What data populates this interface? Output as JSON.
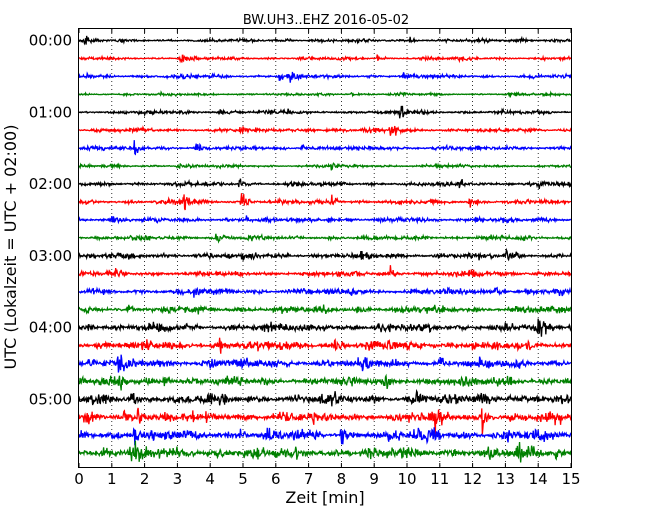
{
  "chart_data": {
    "type": "line",
    "title": "BW.UH3..EHZ 2016-05-02",
    "xlabel": "Zeit  [min]",
    "ylabel": "UTC (Lokalzeit = UTC + 02:00)",
    "xlim": [
      0,
      15
    ],
    "x_ticks": [
      "0",
      "1",
      "2",
      "3",
      "4",
      "5",
      "6",
      "7",
      "8",
      "9",
      "10",
      "11",
      "12",
      "13",
      "14",
      "15"
    ],
    "y_ticks": [
      "00:00",
      "01:00",
      "02:00",
      "03:00",
      "04:00",
      "05:00"
    ],
    "grid": "vertical dotted at each minute",
    "legend": "none",
    "trace_interval_minutes": 15,
    "trace_colors": [
      "#000000",
      "#ff0000",
      "#0000ff",
      "#008000"
    ],
    "traces": [
      {
        "start": "00:00",
        "noise": 0.15,
        "events": [
          [
            0.2,
            0.45
          ],
          [
            6.3,
            0.3
          ],
          [
            10.1,
            0.35
          ],
          [
            13.5,
            0.4
          ]
        ]
      },
      {
        "start": "00:15",
        "noise": 0.15,
        "events": [
          [
            3.1,
            0.7
          ],
          [
            9.1,
            0.3
          ],
          [
            11.6,
            0.3
          ]
        ]
      },
      {
        "start": "00:30",
        "noise": 0.17,
        "events": [
          [
            6.4,
            1.1
          ],
          [
            6.1,
            0.6
          ],
          [
            0.15,
            0.35
          ],
          [
            9.9,
            0.35
          ]
        ]
      },
      {
        "start": "00:45",
        "noise": 0.12,
        "events": [
          [
            13.1,
            0.7
          ],
          [
            8.3,
            0.25
          ],
          [
            2.4,
            0.2
          ]
        ]
      },
      {
        "start": "01:00",
        "noise": 0.18,
        "events": [
          [
            9.8,
            0.5
          ],
          [
            4.3,
            0.3
          ],
          [
            6.3,
            0.35
          ]
        ]
      },
      {
        "start": "01:15",
        "noise": 0.18,
        "events": [
          [
            9.5,
            1.5
          ],
          [
            4.9,
            0.5
          ],
          [
            6.9,
            0.5
          ],
          [
            8.8,
            0.3
          ]
        ]
      },
      {
        "start": "01:30",
        "noise": 0.2,
        "events": [
          [
            1.7,
            0.85
          ],
          [
            3.6,
            0.6
          ],
          [
            6.8,
            0.45
          ],
          [
            11.2,
            0.3
          ]
        ]
      },
      {
        "start": "01:45",
        "noise": 0.14,
        "events": [
          [
            3.0,
            0.6
          ],
          [
            7.7,
            0.3
          ],
          [
            10.9,
            0.25
          ]
        ]
      },
      {
        "start": "02:00",
        "noise": 0.2,
        "events": [
          [
            4.9,
            0.7
          ],
          [
            11.6,
            0.5
          ],
          [
            14.0,
            0.45
          ]
        ]
      },
      {
        "start": "02:15",
        "noise": 0.2,
        "events": [
          [
            4.95,
            1.5
          ],
          [
            3.2,
            1.0
          ],
          [
            7.7,
            1.0
          ],
          [
            11.9,
            0.65
          ]
        ]
      },
      {
        "start": "02:30",
        "noise": 0.2,
        "events": [
          [
            1.0,
            0.55
          ],
          [
            5.1,
            0.4
          ],
          [
            7.6,
            0.45
          ],
          [
            12.1,
            0.35
          ]
        ]
      },
      {
        "start": "02:45",
        "noise": 0.2,
        "events": [
          [
            4.2,
            0.8
          ],
          [
            5.1,
            0.3
          ],
          [
            10.5,
            0.3
          ]
        ]
      },
      {
        "start": "03:00",
        "noise": 0.25,
        "events": [
          [
            13.0,
            1.0
          ],
          [
            4.9,
            0.5
          ],
          [
            8.6,
            0.4
          ]
        ]
      },
      {
        "start": "03:15",
        "noise": 0.25,
        "events": [
          [
            12.0,
            0.7
          ],
          [
            9.5,
            0.55
          ],
          [
            1.1,
            0.35
          ]
        ]
      },
      {
        "start": "03:30",
        "noise": 0.3,
        "events": [
          [
            12.7,
            0.6
          ],
          [
            8.3,
            0.55
          ],
          [
            3.5,
            0.35
          ]
        ]
      },
      {
        "start": "03:45",
        "noise": 0.33,
        "events": [
          [
            1.5,
            0.5
          ],
          [
            8.5,
            0.4
          ],
          [
            13.7,
            0.4
          ]
        ]
      },
      {
        "start": "04:00",
        "noise": 0.37,
        "events": [
          [
            0.3,
            0.6
          ],
          [
            14.0,
            0.9
          ],
          [
            7.5,
            0.5
          ],
          [
            9.1,
            0.4
          ]
        ]
      },
      {
        "start": "04:15",
        "noise": 0.4,
        "events": [
          [
            4.3,
            0.9
          ],
          [
            7.8,
            0.8
          ],
          [
            9.4,
            0.6
          ],
          [
            12.0,
            0.55
          ]
        ]
      },
      {
        "start": "04:30",
        "noise": 0.42,
        "events": [
          [
            1.2,
            0.75
          ],
          [
            4.0,
            0.6
          ],
          [
            8.5,
            0.5
          ],
          [
            11.0,
            0.55
          ]
        ]
      },
      {
        "start": "04:45",
        "noise": 0.42,
        "events": [
          [
            1.2,
            0.75
          ],
          [
            9.3,
            0.7
          ],
          [
            2.6,
            0.6
          ],
          [
            13.1,
            0.55
          ]
        ]
      },
      {
        "start": "05:00",
        "noise": 0.45,
        "events": [
          [
            10.3,
            0.8
          ],
          [
            12.2,
            0.8
          ],
          [
            13.1,
            0.7
          ],
          [
            1.6,
            0.5
          ]
        ]
      },
      {
        "start": "05:15",
        "noise": 0.48,
        "events": [
          [
            10.8,
            1.4
          ],
          [
            12.3,
            1.3
          ],
          [
            1.8,
            1.0
          ],
          [
            1.4,
            0.8
          ]
        ]
      },
      {
        "start": "05:30",
        "noise": 0.5,
        "events": [
          [
            1.7,
            0.9
          ],
          [
            4.9,
            0.8
          ],
          [
            8.0,
            0.7
          ],
          [
            10.8,
            0.7
          ]
        ]
      },
      {
        "start": "05:45",
        "noise": 0.55,
        "events": [
          [
            1.6,
            1.0
          ],
          [
            0.7,
            0.7
          ],
          [
            13.4,
            0.8
          ],
          [
            14.5,
            0.7
          ]
        ]
      }
    ]
  }
}
